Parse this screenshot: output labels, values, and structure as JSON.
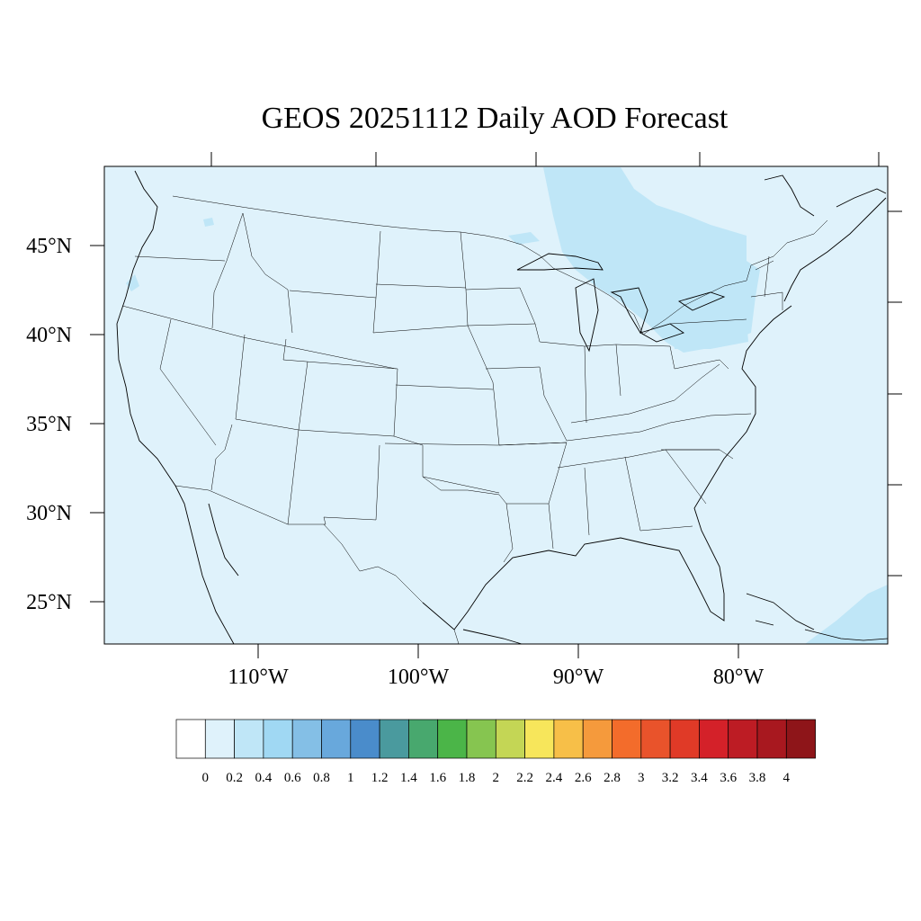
{
  "title": "GEOS 20251112 Daily AOD Forecast",
  "map": {
    "lat_labels": [
      "45°N",
      "40°N",
      "35°N",
      "30°N",
      "25°N"
    ],
    "lon_labels": [
      "110°W",
      "100°W",
      "90°W",
      "80°W"
    ],
    "background_color": "#dff2fb",
    "plume_color": "#bfe6f7",
    "boundary_color": "#000000"
  },
  "colorbar": {
    "labels": [
      "0",
      "0.2",
      "0.4",
      "0.6",
      "0.8",
      "1",
      "1.2",
      "1.4",
      "1.6",
      "1.8",
      "2",
      "2.2",
      "2.4",
      "2.6",
      "2.8",
      "3",
      "3.2",
      "3.4",
      "3.6",
      "3.8",
      "4"
    ],
    "colors": [
      "#ffffff",
      "#dff2fb",
      "#bfe6f7",
      "#a0d8f3",
      "#84bfe6",
      "#68a8dc",
      "#4a8ccb",
      "#4a9a9e",
      "#48a86e",
      "#4bb548",
      "#86c550",
      "#c4d655",
      "#f7e65b",
      "#f7bf48",
      "#f59a3c",
      "#f36c2b",
      "#e9532b",
      "#e03a27",
      "#d42129",
      "#bd1c24",
      "#a8181f",
      "#8e1519"
    ]
  }
}
